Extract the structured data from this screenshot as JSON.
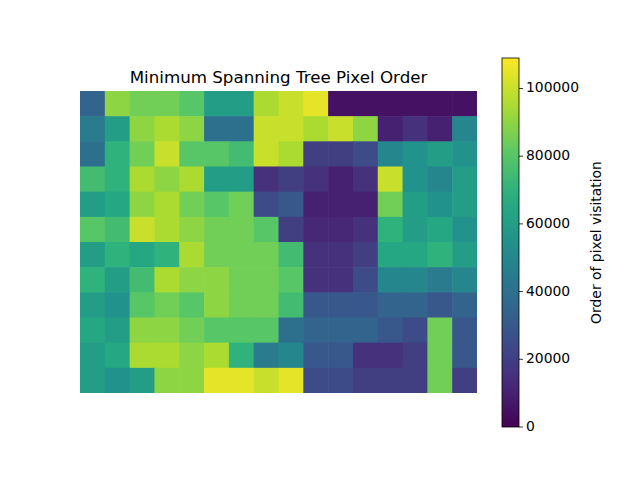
{
  "chart_data": {
    "type": "heatmap",
    "title": "Minimum Spanning Tree Pixel Order",
    "tick_labels": false,
    "grid": false,
    "color": "viridis",
    "cells": [
      [
        35000,
        90000,
        85000,
        85000,
        80000,
        60000,
        60000,
        95000,
        100000,
        105000,
        5000,
        5000,
        5000,
        5000,
        5000,
        5000
      ],
      [
        45000,
        60000,
        90000,
        95000,
        90000,
        40000,
        40000,
        100000,
        100000,
        95000,
        100000,
        90000,
        10000,
        15000,
        10000,
        50000
      ],
      [
        40000,
        70000,
        85000,
        100000,
        80000,
        80000,
        75000,
        100000,
        95000,
        20000,
        20000,
        25000,
        50000,
        55000,
        60000,
        55000
      ],
      [
        75000,
        70000,
        95000,
        90000,
        95000,
        60000,
        60000,
        15000,
        20000,
        15000,
        10000,
        15000,
        100000,
        55000,
        50000,
        60000
      ],
      [
        60000,
        65000,
        90000,
        95000,
        85000,
        80000,
        85000,
        25000,
        30000,
        10000,
        10000,
        10000,
        85000,
        60000,
        55000,
        60000
      ],
      [
        80000,
        75000,
        100000,
        95000,
        90000,
        85000,
        85000,
        80000,
        20000,
        12000,
        12000,
        15000,
        70000,
        60000,
        65000,
        55000
      ],
      [
        60000,
        70000,
        65000,
        70000,
        95000,
        85000,
        85000,
        85000,
        75000,
        15000,
        15000,
        20000,
        65000,
        65000,
        70000,
        60000
      ],
      [
        70000,
        60000,
        75000,
        95000,
        90000,
        90000,
        85000,
        85000,
        80000,
        15000,
        15000,
        25000,
        50000,
        50000,
        45000,
        50000
      ],
      [
        60000,
        55000,
        80000,
        85000,
        80000,
        90000,
        85000,
        85000,
        75000,
        30000,
        30000,
        30000,
        35000,
        35000,
        30000,
        35000
      ],
      [
        65000,
        60000,
        90000,
        90000,
        85000,
        80000,
        80000,
        80000,
        40000,
        35000,
        35000,
        35000,
        30000,
        25000,
        85000,
        30000
      ],
      [
        60000,
        65000,
        95000,
        95000,
        90000,
        95000,
        70000,
        45000,
        50000,
        30000,
        30000,
        15000,
        15000,
        20000,
        85000,
        30000
      ],
      [
        60000,
        55000,
        60000,
        90000,
        90000,
        105000,
        105000,
        100000,
        105000,
        25000,
        25000,
        20000,
        20000,
        20000,
        85000,
        20000
      ]
    ],
    "colorbar": {
      "label": "Order of pixel visitation",
      "range": [
        0,
        109000
      ],
      "ticks": [
        0,
        20000,
        40000,
        60000,
        80000,
        100000
      ]
    }
  }
}
